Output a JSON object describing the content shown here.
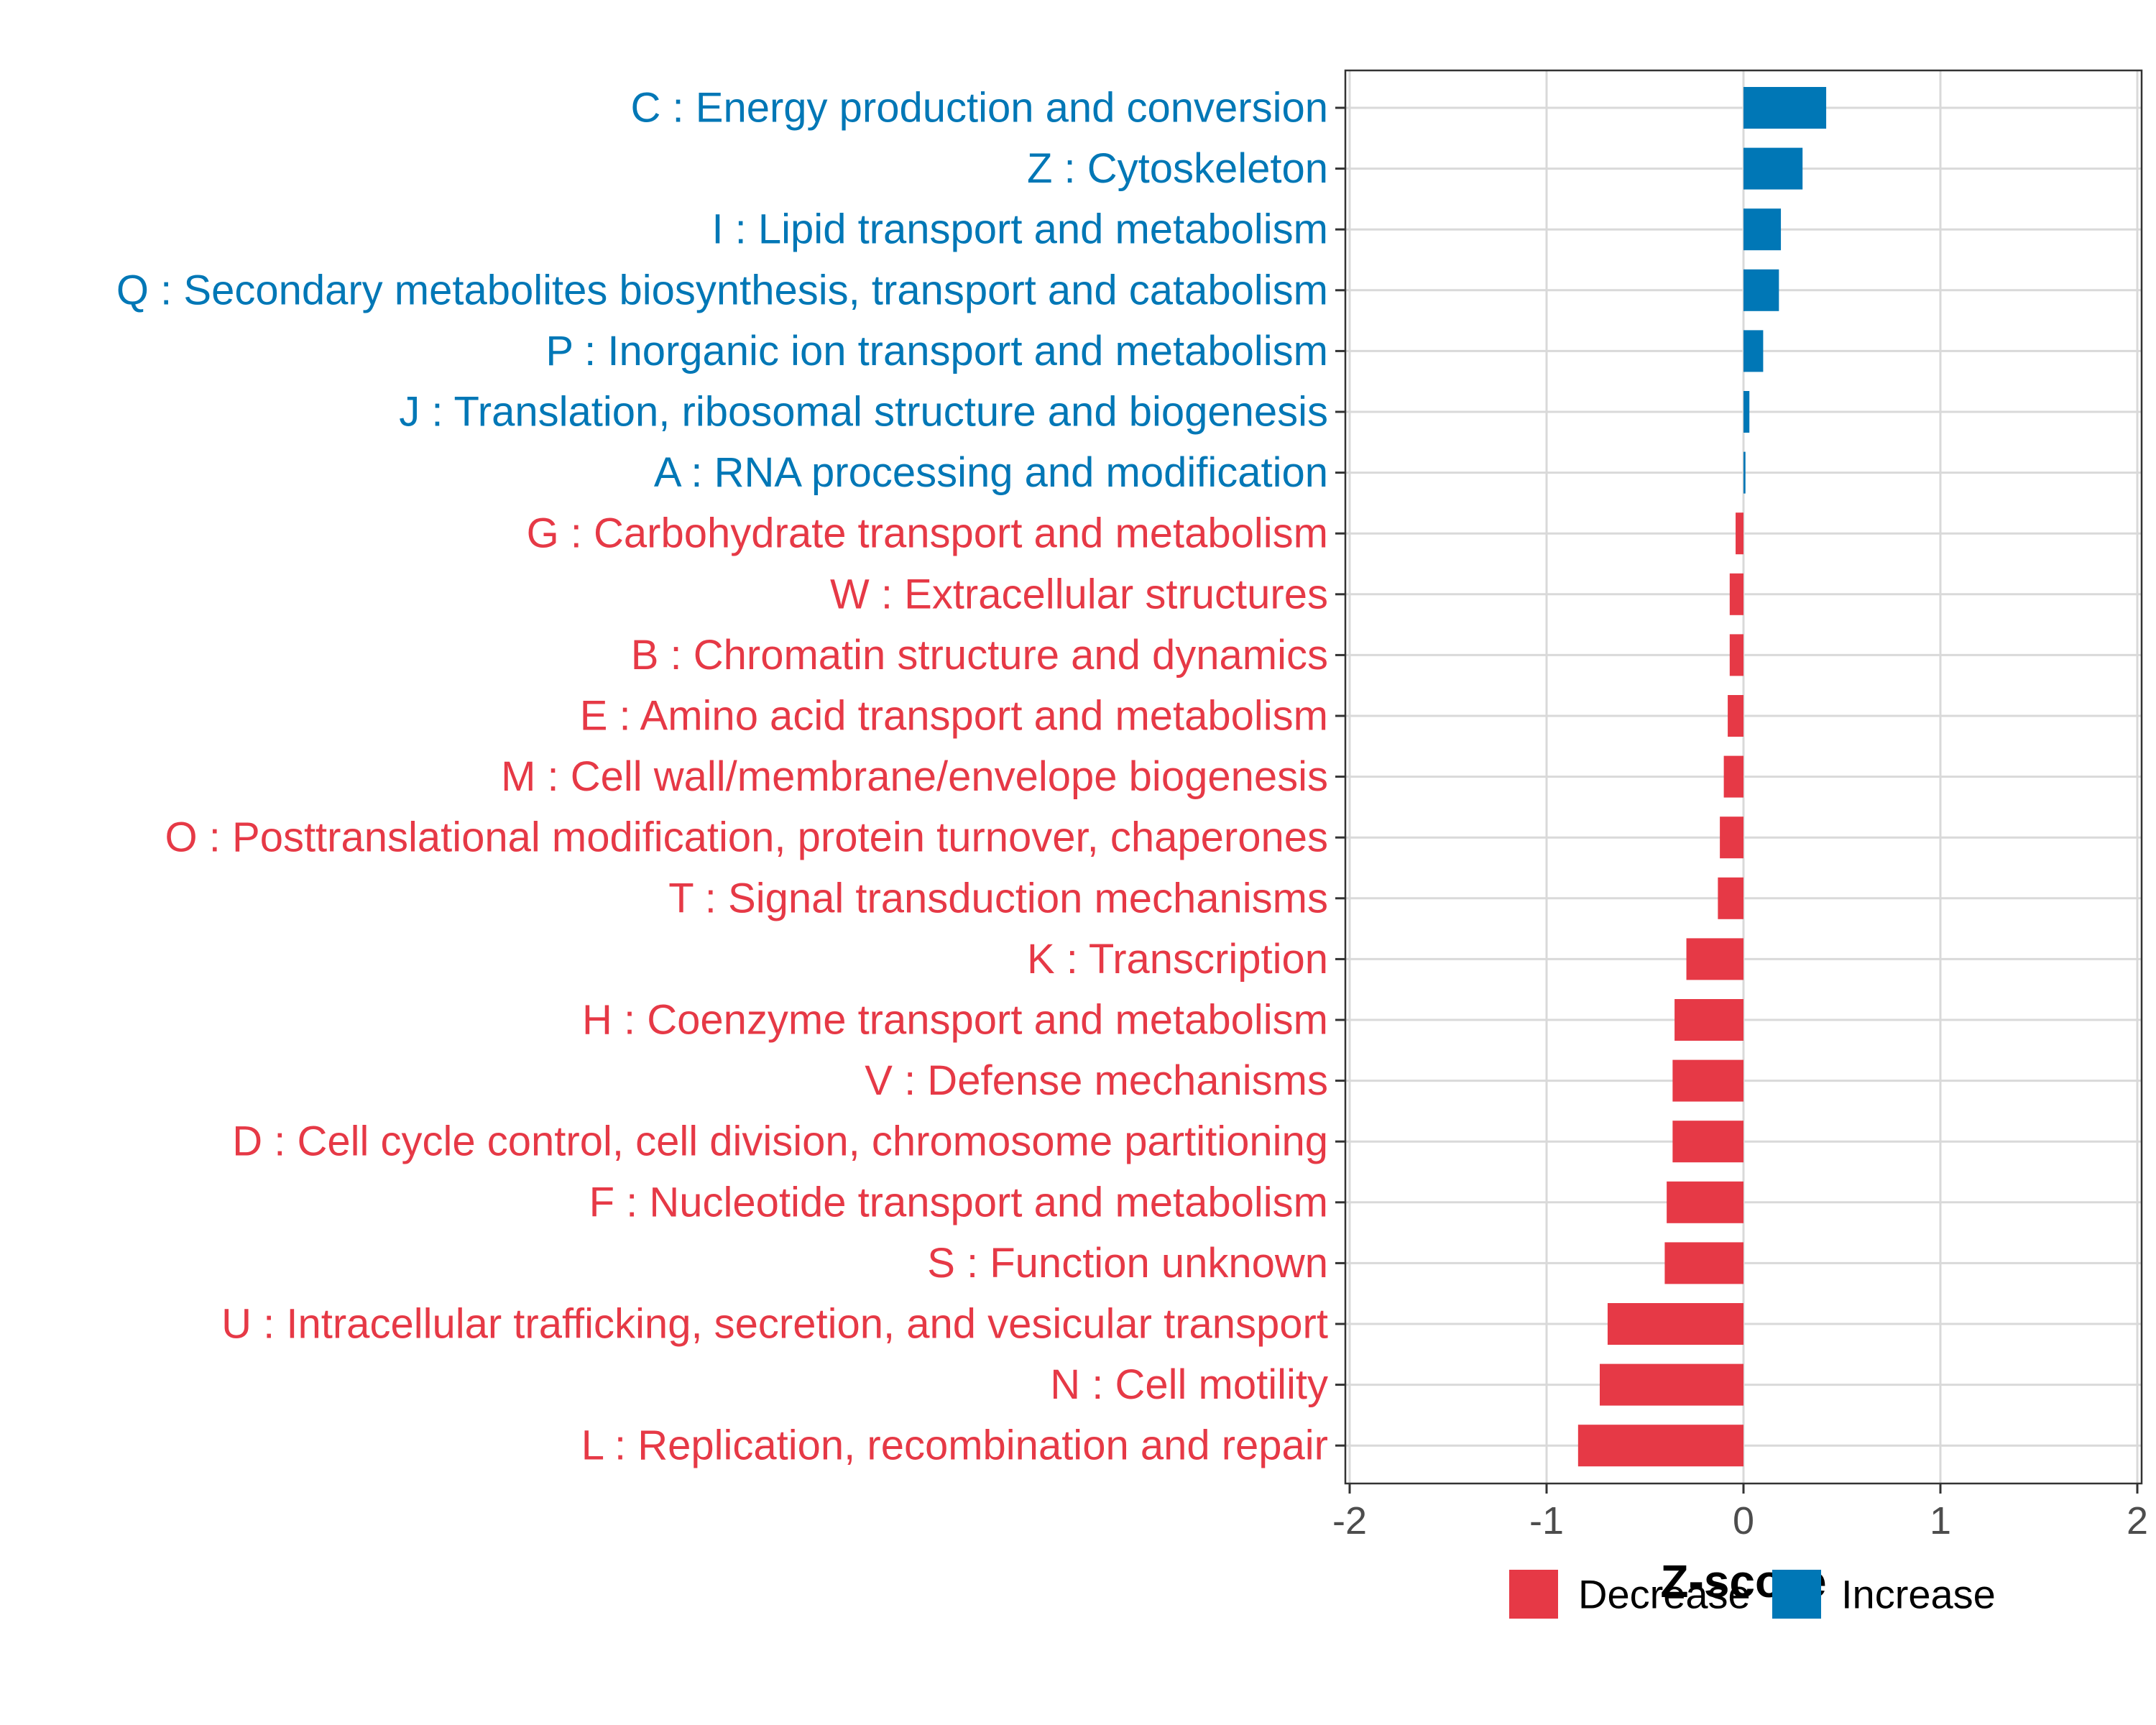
{
  "chart_data": {
    "type": "bar",
    "orientation": "horizontal",
    "title": "",
    "xlabel": "Z-score",
    "ylabel": "",
    "xlim": [
      -2,
      2
    ],
    "xticks": [
      -2,
      -1,
      0,
      1,
      2
    ],
    "xtick_labels": [
      "-2",
      "-1",
      "0",
      "1",
      "2"
    ],
    "grid": true,
    "legend_position": "bottom",
    "legend": [
      {
        "name": "Decrease",
        "color": "#E63946"
      },
      {
        "name": "Increase",
        "color": "#0077B6"
      }
    ],
    "categories": [
      "C : Energy production and conversion",
      "Z : Cytoskeleton",
      "I : Lipid transport and metabolism",
      "Q : Secondary metabolites biosynthesis, transport and catabolism",
      "P : Inorganic ion transport and metabolism",
      "J : Translation, ribosomal structure and biogenesis",
      "A : RNA processing and modification",
      "G : Carbohydrate transport and metabolism",
      "W : Extracellular structures",
      "B : Chromatin structure and dynamics",
      "E : Amino acid transport and metabolism",
      "M : Cell wall/membrane/envelope biogenesis",
      "O : Posttranslational modification, protein turnover, chaperones",
      "T : Signal transduction mechanisms",
      "K : Transcription",
      "H : Coenzyme transport and metabolism",
      "V : Defense mechanisms",
      "D : Cell cycle control, cell division, chromosome partitioning",
      "F : Nucleotide transport and metabolism",
      "S : Function unknown",
      "U : Intracellular trafficking, secretion, and vesicular transport",
      "N : Cell motility",
      "L : Replication, recombination and repair"
    ],
    "values": [
      0.42,
      0.3,
      0.19,
      0.18,
      0.1,
      0.03,
      0.01,
      -0.04,
      -0.07,
      -0.07,
      -0.08,
      -0.1,
      -0.12,
      -0.13,
      -0.29,
      -0.35,
      -0.36,
      -0.36,
      -0.39,
      -0.4,
      -0.69,
      -0.73,
      -0.84
    ],
    "groups": [
      "Increase",
      "Increase",
      "Increase",
      "Increase",
      "Increase",
      "Increase",
      "Increase",
      "Decrease",
      "Decrease",
      "Decrease",
      "Decrease",
      "Decrease",
      "Decrease",
      "Decrease",
      "Decrease",
      "Decrease",
      "Decrease",
      "Decrease",
      "Decrease",
      "Decrease",
      "Decrease",
      "Decrease",
      "Decrease"
    ]
  }
}
